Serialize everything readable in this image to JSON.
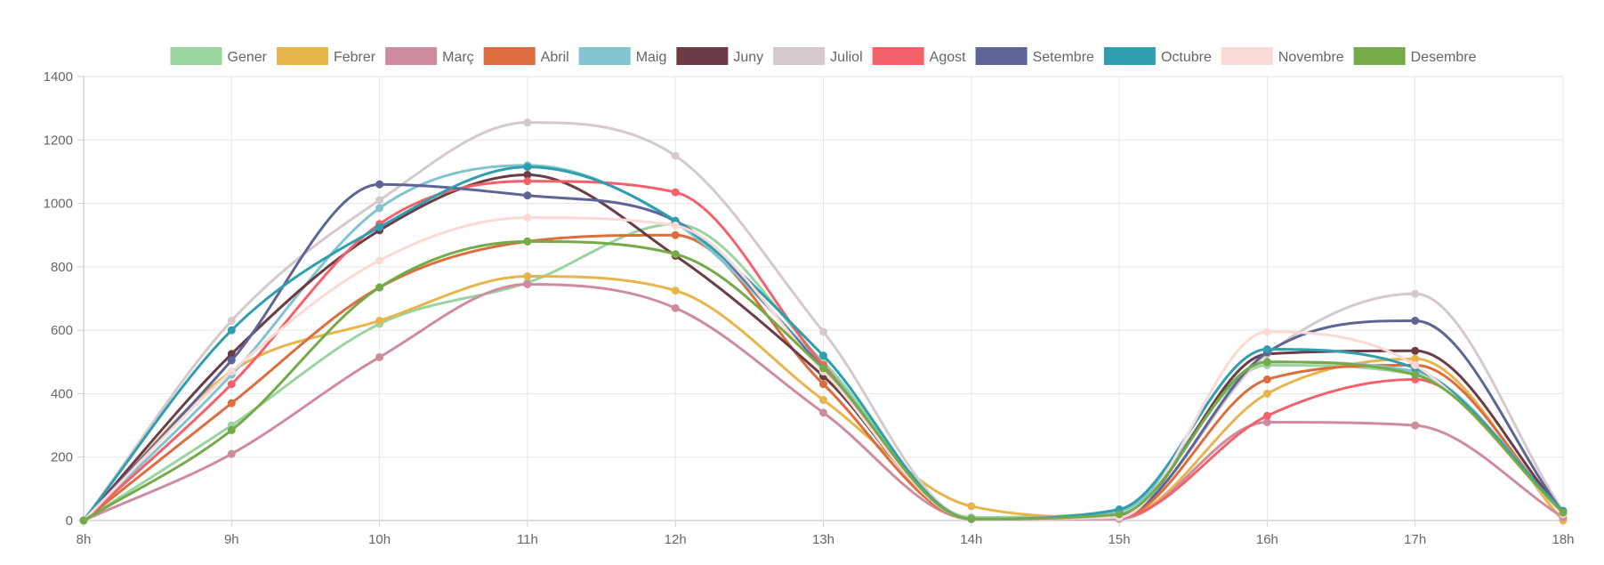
{
  "chart_data": {
    "type": "line",
    "categories": [
      "8h",
      "9h",
      "10h",
      "11h",
      "12h",
      "13h",
      "14h",
      "15h",
      "16h",
      "17h",
      "18h"
    ],
    "ylim": [
      0,
      1400
    ],
    "yticks": [
      0,
      200,
      400,
      600,
      800,
      1000,
      1200,
      1400
    ],
    "grid": true,
    "legend_position": "top",
    "smooth": true,
    "series": [
      {
        "name": "Gener",
        "color": "#98d5a0",
        "values": [
          0,
          300,
          620,
          750,
          935,
          500,
          10,
          30,
          490,
          460,
          30
        ]
      },
      {
        "name": "Febrer",
        "color": "#eab44c",
        "values": [
          0,
          470,
          630,
          770,
          725,
          380,
          45,
          10,
          400,
          510,
          0
        ]
      },
      {
        "name": "Març",
        "color": "#cf8c9e",
        "values": [
          0,
          210,
          515,
          745,
          670,
          340,
          5,
          5,
          310,
          300,
          10
        ]
      },
      {
        "name": "Abril",
        "color": "#dc6d3f",
        "values": [
          0,
          370,
          735,
          880,
          900,
          430,
          5,
          10,
          445,
          490,
          20
        ]
      },
      {
        "name": "Maig",
        "color": "#80c4cf",
        "values": [
          0,
          460,
          985,
          1120,
          940,
          490,
          5,
          30,
          500,
          470,
          30
        ]
      },
      {
        "name": "Juny",
        "color": "#6b3c45",
        "values": [
          0,
          525,
          915,
          1090,
          835,
          455,
          5,
          15,
          525,
          535,
          25
        ]
      },
      {
        "name": "Juliol",
        "color": "#d5c9cc",
        "values": [
          0,
          630,
          1010,
          1255,
          1150,
          595,
          5,
          20,
          525,
          715,
          30
        ]
      },
      {
        "name": "Agost",
        "color": "#f3626b",
        "values": [
          0,
          430,
          935,
          1070,
          1035,
          490,
          5,
          10,
          330,
          445,
          30
        ]
      },
      {
        "name": "Setembre",
        "color": "#5f6497",
        "values": [
          0,
          505,
          1060,
          1025,
          945,
          480,
          5,
          15,
          530,
          630,
          25
        ]
      },
      {
        "name": "Octubre",
        "color": "#2f9eae",
        "values": [
          0,
          600,
          925,
          1115,
          945,
          520,
          5,
          35,
          540,
          480,
          30
        ]
      },
      {
        "name": "Novembre",
        "color": "#fadad6",
        "values": [
          0,
          470,
          820,
          955,
          930,
          470,
          5,
          10,
          595,
          490,
          20
        ]
      },
      {
        "name": "Desembre",
        "color": "#74ab48",
        "values": [
          0,
          285,
          735,
          880,
          840,
          480,
          5,
          20,
          500,
          460,
          25
        ]
      }
    ]
  }
}
